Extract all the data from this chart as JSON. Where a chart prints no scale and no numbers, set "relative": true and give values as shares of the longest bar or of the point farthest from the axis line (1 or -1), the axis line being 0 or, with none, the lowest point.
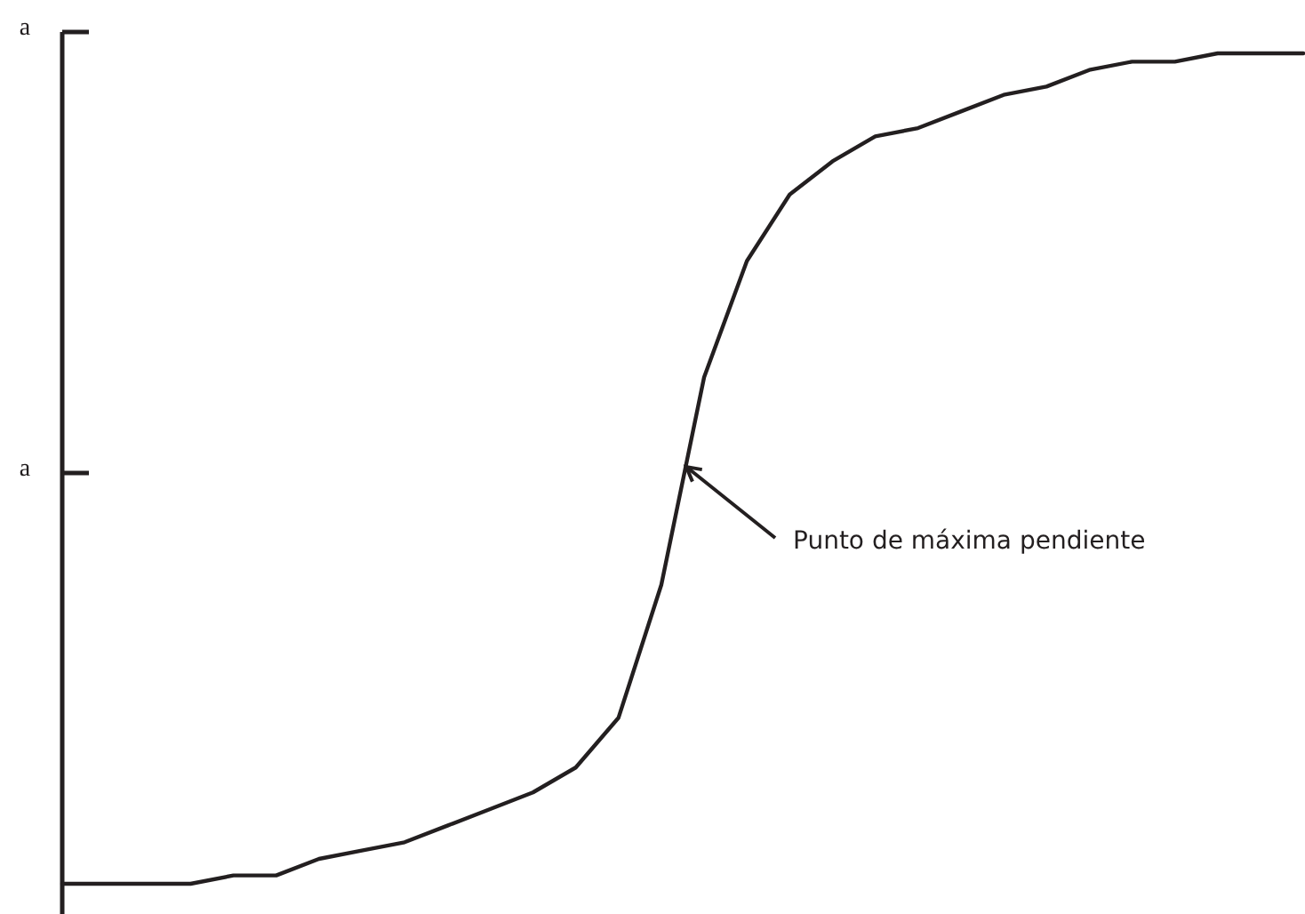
{
  "chart_data": {
    "type": "line",
    "relative": true,
    "categories": [
      null,
      null,
      null,
      null,
      null,
      null,
      null,
      null,
      null,
      null,
      null,
      null,
      null,
      null,
      null,
      null,
      null,
      null,
      null,
      null,
      null,
      null,
      null,
      null,
      null,
      null,
      null,
      null,
      null,
      null
    ],
    "series": [
      {
        "color": "#231f20",
        "values": [
          0,
          0,
          0,
          0,
          0.01,
          0.01,
          0.03,
          0.04,
          0.05,
          0.07,
          0.09,
          0.11,
          0.14,
          0.2,
          0.36,
          0.61,
          0.75,
          0.83,
          0.87,
          0.9,
          0.91,
          0.93,
          0.95,
          0.96,
          0.98,
          0.99,
          0.99,
          1,
          1,
          1
        ]
      }
    ],
    "marker": "none",
    "line_style": "solid",
    "annotations": [
      "a",
      "a",
      "Punto de máxima pendiente"
    ]
  }
}
